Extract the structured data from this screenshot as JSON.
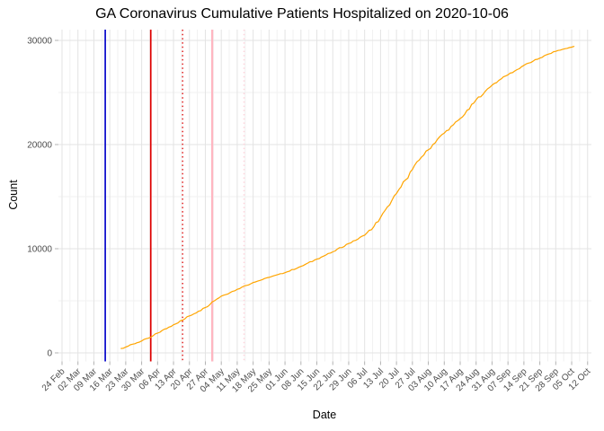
{
  "chart_data": {
    "type": "line",
    "title": "GA Coronavirus Cumulative Patients Hospitalized on 2020-10-06",
    "xlabel": "Date",
    "ylabel": "Count",
    "x_start_date": "2020-02-24",
    "x_tick_interval_days": 7,
    "x_tick_labels": [
      "24 Feb",
      "02 Mar",
      "09 Mar",
      "16 Mar",
      "23 Mar",
      "30 Mar",
      "06 Apr",
      "13 Apr",
      "20 Apr",
      "27 Apr",
      "04 May",
      "11 May",
      "18 May",
      "25 May",
      "01 Jun",
      "08 Jun",
      "15 Jun",
      "22 Jun",
      "29 Jun",
      "06 Jul",
      "13 Jul",
      "20 Jul",
      "27 Jul",
      "03 Aug",
      "10 Aug",
      "17 Aug",
      "24 Aug",
      "31 Aug",
      "07 Sep",
      "14 Sep",
      "21 Sep",
      "28 Sep",
      "05 Oct",
      "12 Oct"
    ],
    "y_ticks": [
      0,
      10000,
      20000,
      30000
    ],
    "y_minor_ticks": [
      5000,
      15000,
      25000
    ],
    "ylim": [
      0,
      31000
    ],
    "grid": true,
    "legend": "none",
    "colors": {
      "series_line": "#FFA500",
      "grid_major": "#E3E3E3",
      "grid_minor": "#F1F1F1",
      "tick_mark": "#B3B3B3",
      "tick_text": "#4D4D4D",
      "background": "#FFFFFF"
    },
    "series": [
      {
        "name": "cumulative-patients-hospitalized",
        "points": [
          [
            "2020-03-21",
            420
          ],
          [
            "2020-03-23",
            560
          ],
          [
            "2020-03-30",
            1150
          ],
          [
            "2020-04-03",
            1500
          ],
          [
            "2020-04-06",
            1900
          ],
          [
            "2020-04-13",
            2700
          ],
          [
            "2020-04-17",
            3150
          ],
          [
            "2020-04-20",
            3550
          ],
          [
            "2020-04-24",
            4000
          ],
          [
            "2020-04-27",
            4350
          ],
          [
            "2020-04-30",
            4900
          ],
          [
            "2020-05-04",
            5450
          ],
          [
            "2020-05-08",
            5800
          ],
          [
            "2020-05-11",
            6100
          ],
          [
            "2020-05-13",
            6300
          ],
          [
            "2020-05-18",
            6750
          ],
          [
            "2020-05-25",
            7250
          ],
          [
            "2020-06-01",
            7700
          ],
          [
            "2020-06-08",
            8300
          ],
          [
            "2020-06-15",
            9000
          ],
          [
            "2020-06-22",
            9700
          ],
          [
            "2020-06-29",
            10500
          ],
          [
            "2020-07-02",
            10800
          ],
          [
            "2020-07-06",
            11300
          ],
          [
            "2020-07-10",
            12100
          ],
          [
            "2020-07-13",
            13000
          ],
          [
            "2020-07-17",
            14200
          ],
          [
            "2020-07-20",
            15300
          ],
          [
            "2020-07-24",
            16600
          ],
          [
            "2020-07-27",
            17600
          ],
          [
            "2020-07-31",
            18800
          ],
          [
            "2020-08-03",
            19500
          ],
          [
            "2020-08-07",
            20500
          ],
          [
            "2020-08-10",
            21100
          ],
          [
            "2020-08-14",
            21900
          ],
          [
            "2020-08-17",
            22500
          ],
          [
            "2020-08-21",
            23400
          ],
          [
            "2020-08-24",
            24300
          ],
          [
            "2020-08-28",
            25100
          ],
          [
            "2020-08-31",
            25700
          ],
          [
            "2020-09-04",
            26300
          ],
          [
            "2020-09-07",
            26700
          ],
          [
            "2020-09-11",
            27200
          ],
          [
            "2020-09-14",
            27600
          ],
          [
            "2020-09-18",
            28000
          ],
          [
            "2020-09-21",
            28300
          ],
          [
            "2020-09-25",
            28700
          ],
          [
            "2020-09-28",
            28950
          ],
          [
            "2020-10-02",
            29200
          ],
          [
            "2020-10-05",
            29350
          ],
          [
            "2020-10-06",
            29420
          ]
        ]
      }
    ],
    "vlines": [
      {
        "date": "2020-03-14",
        "color": "#1414CD",
        "style": "solid",
        "width": 1.8
      },
      {
        "date": "2020-04-03",
        "color": "#DE0000",
        "style": "solid",
        "width": 1.7
      },
      {
        "date": "2020-04-17",
        "color": "#DE0000",
        "style": "dotted",
        "width": 1.3
      },
      {
        "date": "2020-04-30",
        "color": "#FFB6C1",
        "style": "solid",
        "width": 2.2
      },
      {
        "date": "2020-05-14",
        "color": "#FFD3DB",
        "style": "dotted",
        "width": 1.5
      }
    ]
  }
}
